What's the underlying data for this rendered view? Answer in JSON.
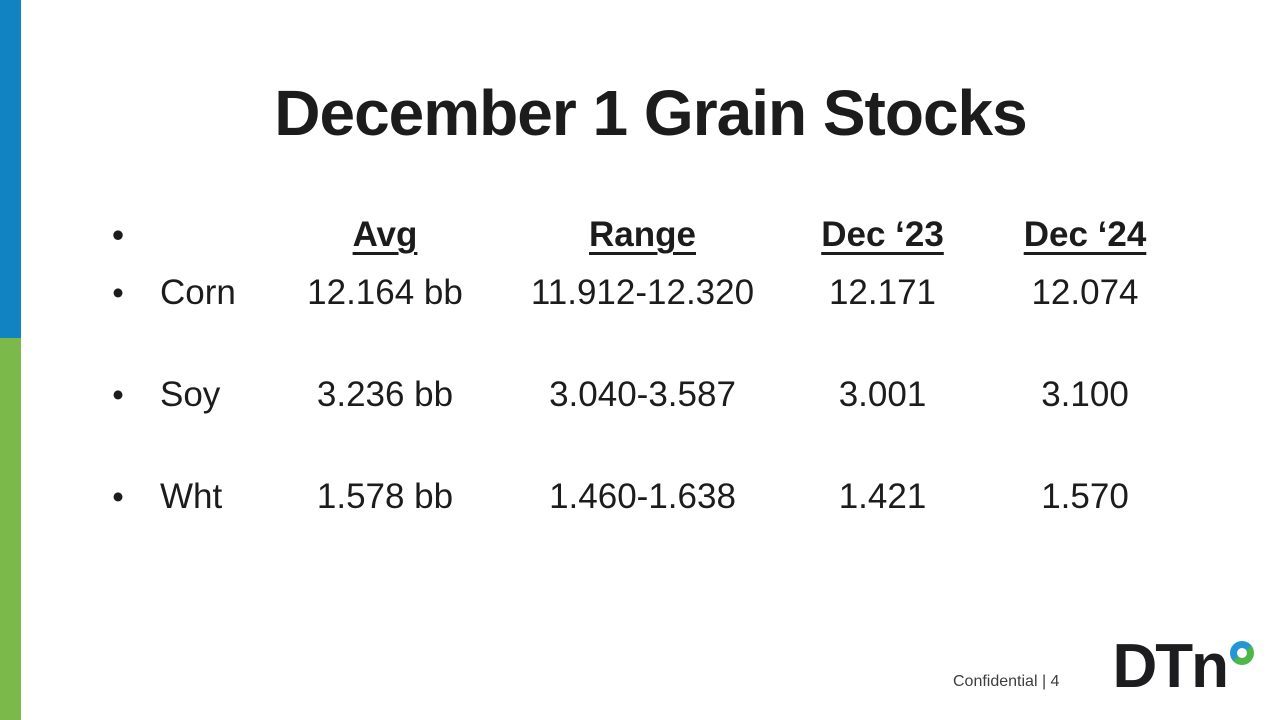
{
  "slide": {
    "title": "December 1 Grain Stocks",
    "footer": {
      "confidential": "Confidential | 4"
    },
    "logo": {
      "text": "DTn",
      "brand": "DTN"
    },
    "colors": {
      "bar_blue": "#1283c2",
      "bar_green": "#7cb94b",
      "ring_blue": "#2496d8",
      "ring_green": "#4db748",
      "text": "#1c1c1c"
    }
  },
  "table": {
    "bullet": "•",
    "headers": [
      "Avg",
      "Range",
      "Dec ‘23",
      "Dec ‘24"
    ],
    "rows": [
      {
        "label": "Corn",
        "avg": "12.164 bb",
        "range": "11.912-12.320",
        "dec23": "12.171",
        "dec24": "12.074"
      },
      {
        "label": "Soy",
        "avg": "3.236 bb",
        "range": "3.040-3.587",
        "dec23": "3.001",
        "dec24": "3.100"
      },
      {
        "label": "Wht",
        "avg": "1.578 bb",
        "range": "1.460-1.638",
        "dec23": "1.421",
        "dec24": "1.570"
      }
    ]
  }
}
